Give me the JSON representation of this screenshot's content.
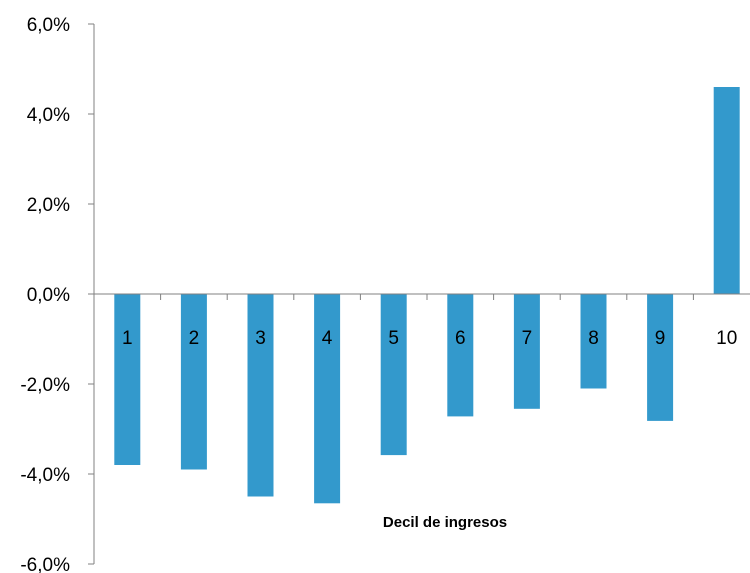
{
  "chart_data": {
    "type": "bar",
    "categories": [
      "1",
      "2",
      "3",
      "4",
      "5",
      "6",
      "7",
      "8",
      "9",
      "10"
    ],
    "values": [
      -3.8,
      -3.9,
      -4.5,
      -4.65,
      -3.58,
      -2.72,
      -2.55,
      -2.1,
      -2.82,
      4.6
    ],
    "xlabel": "Decil de ingresos",
    "ylabel": "",
    "ylim": [
      -6,
      6
    ],
    "yticks": [
      -6,
      -4,
      -2,
      0,
      2,
      4,
      6
    ],
    "ytick_labels": [
      "-6,0%",
      "-4,0%",
      "-2,0%",
      "0,0%",
      "2,0%",
      "4,0%",
      "6,0%"
    ],
    "grid": false,
    "bar_color": "#3399cc",
    "axis_color": "#808080"
  }
}
